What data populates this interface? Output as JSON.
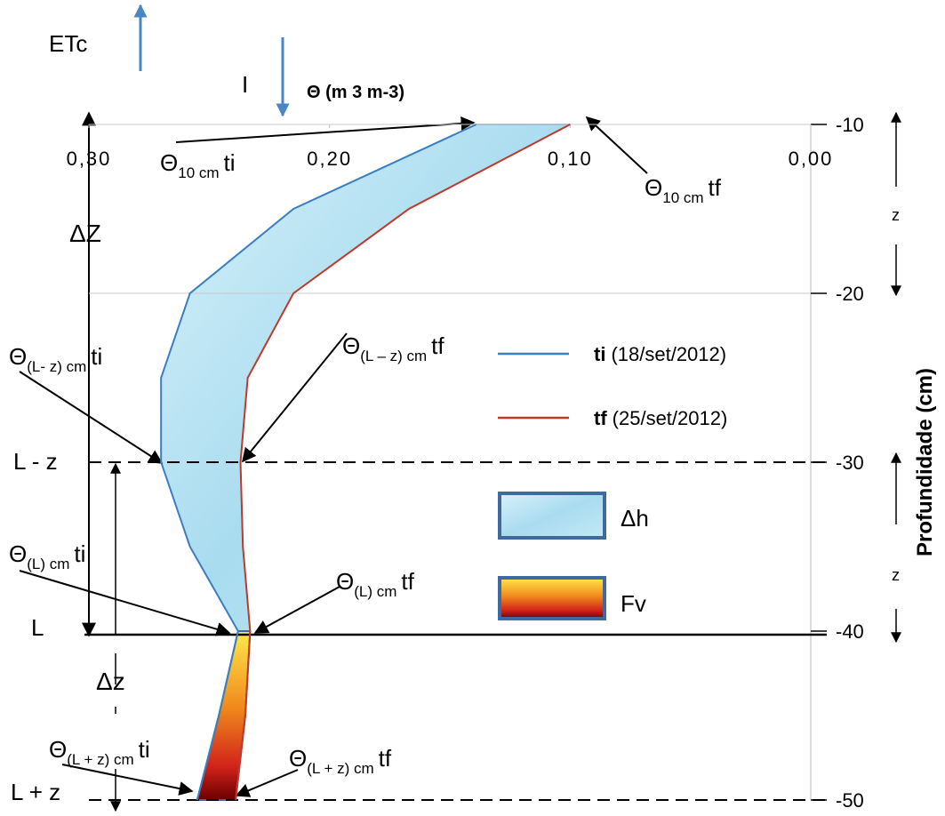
{
  "chart_data": {
    "type": "line",
    "xlabel": "Θ (m 3  m-3)",
    "ylabel": "Profundidade (cm)",
    "xlim": [
      0.3,
      0.0
    ],
    "xticks": [
      {
        "value": 0.3,
        "label": "0,30"
      },
      {
        "value": 0.2,
        "label": "0,20"
      },
      {
        "value": 0.1,
        "label": "0,10"
      },
      {
        "value": 0.0,
        "label": "0,00"
      }
    ],
    "ylim": [
      -10,
      -50
    ],
    "yticks": [
      -10,
      -20,
      -30,
      -40,
      -50
    ],
    "grid": true,
    "series": [
      {
        "name": "ti",
        "period": "(18/set/2012)",
        "color": "#3a7fc1",
        "x": [
          0.139,
          0.215,
          0.258,
          0.27,
          0.27,
          0.258,
          0.238,
          0.246,
          0.255
        ],
        "values": [
          -10,
          -15,
          -20,
          -25,
          -30,
          -35,
          -40,
          -45,
          -50
        ]
      },
      {
        "name": "tf",
        "period": "(25/set/2012)",
        "color": "#c0392b",
        "x": [
          0.1,
          0.167,
          0.215,
          0.234,
          0.237,
          0.236,
          0.233,
          0.235,
          0.239
        ],
        "values": [
          -10,
          -15,
          -20,
          -25,
          -30,
          -35,
          -40,
          -45,
          -50
        ]
      }
    ],
    "areas": [
      {
        "name": "Δh"
      },
      {
        "name": "Fv"
      }
    ],
    "flux_labels": {
      "evapotranspiration": "ETc",
      "irrigation": "I"
    },
    "depth_labels": [
      "ΔZ",
      "L - z",
      "L",
      "Δz",
      "L + z"
    ],
    "z_labels": [
      "z",
      "z"
    ],
    "annotations": [
      {
        "symbol": "Θ",
        "sub": "10 cm",
        "suffix": "ti"
      },
      {
        "symbol": "Θ",
        "sub": "10 cm",
        "suffix": "tf"
      },
      {
        "symbol": "Θ",
        "sub": "(L- z) cm",
        "suffix": "ti"
      },
      {
        "symbol": "Θ",
        "sub": "(L – z) cm",
        "suffix": "tf"
      },
      {
        "symbol": "Θ",
        "sub": "(L) cm",
        "suffix": "ti"
      },
      {
        "symbol": "Θ",
        "sub": "(L) cm",
        "suffix": "tf"
      },
      {
        "symbol": "Θ",
        "sub": "(L + z) cm",
        "suffix": "ti"
      },
      {
        "symbol": "Θ",
        "sub": "(L + z) cm",
        "suffix": "tf"
      }
    ]
  }
}
